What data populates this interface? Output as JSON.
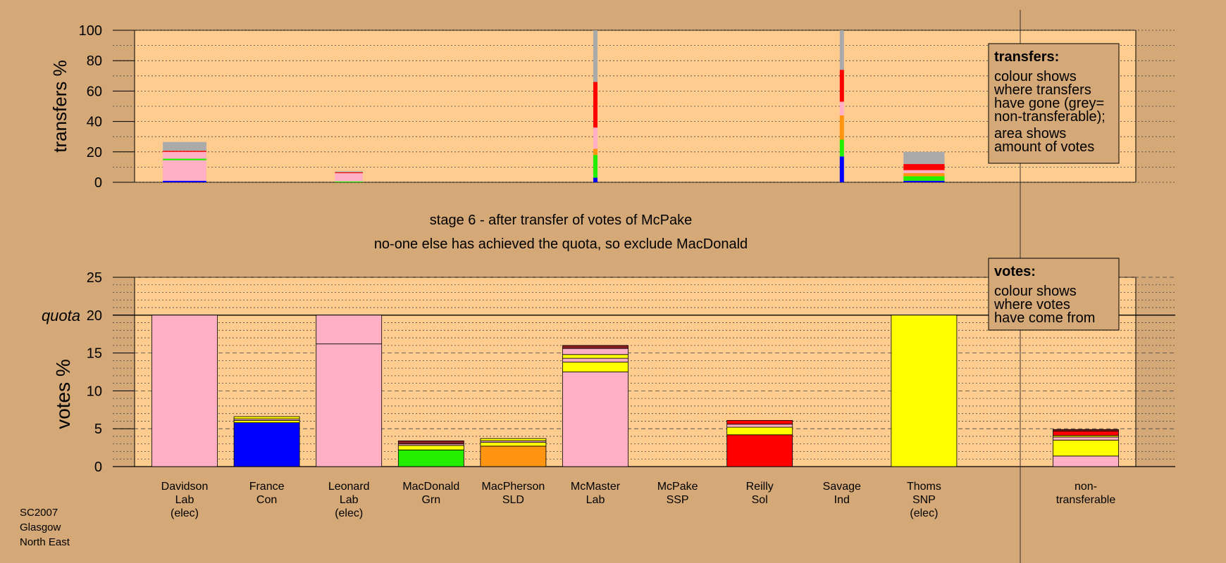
{
  "title_line1": "stage 6 - after transfer of votes of McPake",
  "title_line2": "no-one else has achieved the quota, so exclude MacDonald",
  "footer": [
    "SC2007",
    "Glasgow",
    "North East"
  ],
  "colors": {
    "panel_bg": "#ffcc8f",
    "page_bg": "#d4a877",
    "Lab": "#ffb0c4",
    "Con": "#0000ff",
    "Grn": "#22ee00",
    "SLD": "#ff9410",
    "Sol": "#ff0000",
    "SNP": "#ffff00",
    "Ind": "#8a1e1e",
    "nontransferable": "#aaaaaa"
  },
  "candidates": [
    {
      "name": "Davidson",
      "party": "Lab",
      "status": "(elec)"
    },
    {
      "name": "France",
      "party": "Con",
      "status": ""
    },
    {
      "name": "Leonard",
      "party": "Lab",
      "status": "(elec)"
    },
    {
      "name": "MacDonald",
      "party": "Grn",
      "status": ""
    },
    {
      "name": "MacPherson",
      "party": "SLD",
      "status": ""
    },
    {
      "name": "McMaster",
      "party": "Lab",
      "status": ""
    },
    {
      "name": "McPake",
      "party": "SSP",
      "status": ""
    },
    {
      "name": "Reilly",
      "party": "Sol",
      "status": ""
    },
    {
      "name": "Savage",
      "party": "Ind",
      "status": ""
    },
    {
      "name": "Thoms",
      "party": "SNP",
      "status": "(elec)"
    }
  ],
  "nontransferable_label": [
    "non-",
    "transferable"
  ],
  "chart_data": [
    {
      "type": "bar",
      "ylabel": "transfers %",
      "ylim": [
        0,
        100
      ],
      "yticks": [
        0,
        20,
        40,
        60,
        80,
        100
      ],
      "legend": {
        "title": "transfers:",
        "lines": [
          "colour shows",
          "where transfers",
          "have gone (grey=",
          "non-transferable);"
        ],
        "lines2": [
          "area shows",
          "amount of votes"
        ]
      },
      "bars": [
        {
          "candidate": "Davidson",
          "width_frac": 0.53,
          "segments": [
            {
              "party": "Con",
              "value": 1
            },
            {
              "party": "Lab",
              "value": 13.5
            },
            {
              "party": "Grn",
              "value": 1
            },
            {
              "party": "Lab",
              "value": 4.5
            },
            {
              "party": "Sol",
              "value": 0.7
            },
            {
              "party": "nontransferable",
              "value": 5.8
            }
          ]
        },
        {
          "candidate": "Leonard",
          "width_frac": 0.34,
          "segments": [
            {
              "party": "Grn",
              "value": 0.6
            },
            {
              "party": "Lab",
              "value": 5.4
            },
            {
              "party": "Sol",
              "value": 0.6
            },
            {
              "party": "nontransferable",
              "value": 0.6
            }
          ]
        },
        {
          "candidate": "McMaster",
          "width_frac": 0.03,
          "segments": [
            {
              "party": "Con",
              "value": 3
            },
            {
              "party": "Grn",
              "value": 15
            },
            {
              "party": "SLD",
              "value": 4
            },
            {
              "party": "Lab",
              "value": 14
            },
            {
              "party": "Sol",
              "value": 30
            },
            {
              "party": "nontransferable",
              "value": 34
            }
          ]
        },
        {
          "candidate": "Savage",
          "width_frac": 0.03,
          "segments": [
            {
              "party": "Con",
              "value": 17
            },
            {
              "party": "Grn",
              "value": 11
            },
            {
              "party": "SLD",
              "value": 16
            },
            {
              "party": "Lab",
              "value": 9
            },
            {
              "party": "Sol",
              "value": 21
            },
            {
              "party": "nontransferable",
              "value": 26
            }
          ]
        },
        {
          "candidate": "Thoms",
          "width_frac": 0.5,
          "segments": [
            {
              "party": "Con",
              "value": 1
            },
            {
              "party": "Grn",
              "value": 3
            },
            {
              "party": "SLD",
              "value": 2
            },
            {
              "party": "Lab",
              "value": 2
            },
            {
              "party": "Sol",
              "value": 4
            },
            {
              "party": "nontransferable",
              "value": 8
            }
          ]
        }
      ]
    },
    {
      "type": "bar",
      "ylabel": "votes %",
      "ylim": [
        0,
        25
      ],
      "yticks": [
        0,
        5,
        10,
        15,
        20,
        25
      ],
      "quota": {
        "label": "quota",
        "value": 20
      },
      "legend": {
        "title": "votes:",
        "lines": [
          "colour shows",
          "where votes",
          "have come from"
        ],
        "lines2": []
      },
      "bars": [
        {
          "candidate": "Davidson",
          "segments": [
            {
              "party": "Lab",
              "value": 20
            }
          ]
        },
        {
          "candidate": "France",
          "segments": [
            {
              "party": "Con",
              "value": 5.8
            },
            {
              "party": "SNP",
              "value": 0.3
            },
            {
              "party": "Lab",
              "value": 0.2
            },
            {
              "party": "SNP",
              "value": 0.3
            }
          ]
        },
        {
          "candidate": "Leonard",
          "segments": [
            {
              "party": "Lab",
              "value": 16.2
            },
            {
              "party": "Lab",
              "value": 3.8
            }
          ]
        },
        {
          "candidate": "MacDonald",
          "segments": [
            {
              "party": "Grn",
              "value": 2.2
            },
            {
              "party": "SNP",
              "value": 0.6
            },
            {
              "party": "Lab",
              "value": 0.2
            },
            {
              "party": "Ind",
              "value": 0.4
            }
          ]
        },
        {
          "candidate": "MacPherson",
          "segments": [
            {
              "party": "SLD",
              "value": 2.7
            },
            {
              "party": "SNP",
              "value": 0.5
            },
            {
              "party": "Lab",
              "value": 0.2
            },
            {
              "party": "SNP",
              "value": 0.3
            }
          ]
        },
        {
          "candidate": "McMaster",
          "segments": [
            {
              "party": "Lab",
              "value": 12.5
            },
            {
              "party": "SNP",
              "value": 1.3
            },
            {
              "party": "Lab",
              "value": 0.5
            },
            {
              "party": "SNP",
              "value": 0.5
            },
            {
              "party": "Lab",
              "value": 0.8
            },
            {
              "party": "Ind",
              "value": 0.4
            }
          ]
        },
        {
          "candidate": "McPake",
          "segments": []
        },
        {
          "candidate": "Reilly",
          "segments": [
            {
              "party": "Sol",
              "value": 4.2
            },
            {
              "party": "SNP",
              "value": 1.0
            },
            {
              "party": "Lab",
              "value": 0.4
            },
            {
              "party": "Sol",
              "value": 0.5
            }
          ]
        },
        {
          "candidate": "Savage",
          "segments": []
        },
        {
          "candidate": "Thoms",
          "segments": [
            {
              "party": "SNP",
              "value": 20
            }
          ]
        }
      ],
      "nontransferable_bar": {
        "segments": [
          {
            "party": "Lab",
            "value": 1.4
          },
          {
            "party": "SNP",
            "value": 2.1
          },
          {
            "party": "Lab",
            "value": 0.4
          },
          {
            "party": "SNP",
            "value": 0.2
          },
          {
            "party": "Sol",
            "value": 0.6
          },
          {
            "party": "Ind",
            "value": 0.2
          }
        ]
      }
    }
  ]
}
